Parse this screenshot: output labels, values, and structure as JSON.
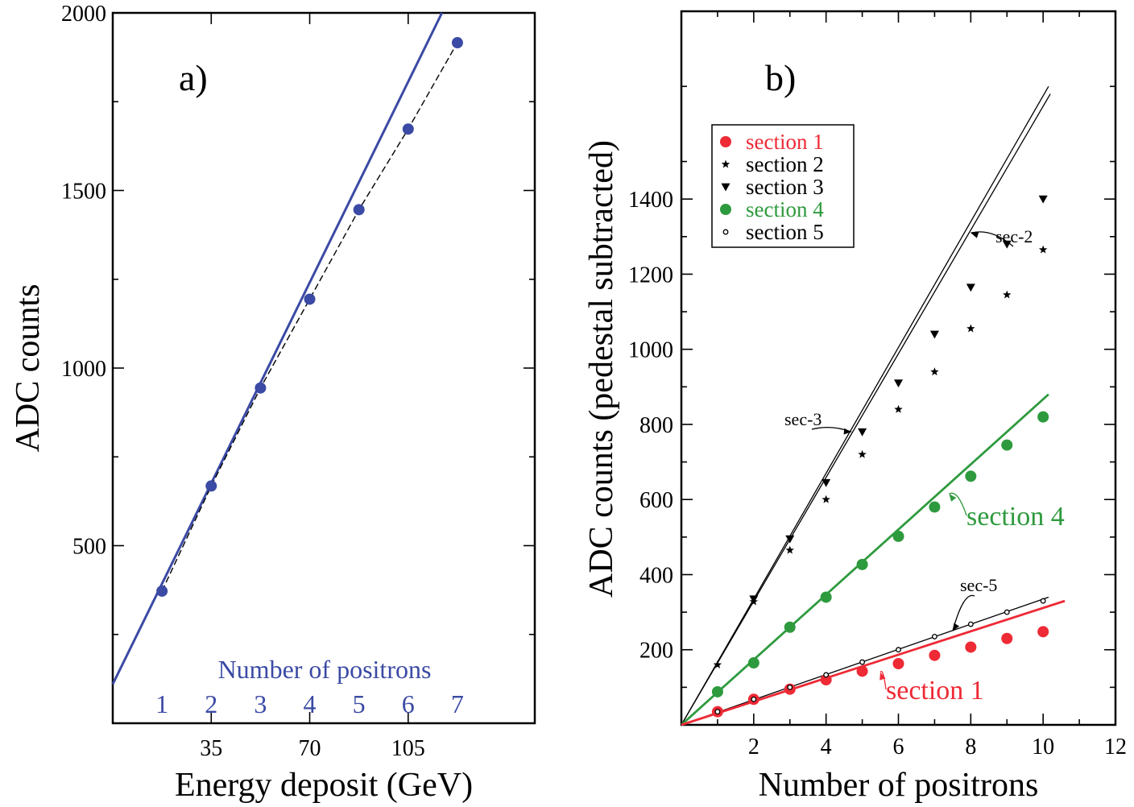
{
  "chart_data": [
    {
      "id": "a",
      "type": "line",
      "panel_label": "a)",
      "title": "",
      "xlabel": "Energy deposit (GeV)",
      "ylabel": "ADC counts",
      "xlim": [
        0,
        150
      ],
      "ylim": [
        0,
        2000
      ],
      "x_ticks": [
        35,
        70,
        105
      ],
      "x_tick_labels": [
        "35",
        "70",
        "105"
      ],
      "y_ticks": [
        500,
        1000,
        1500,
        2000
      ],
      "y_tick_labels": [
        "500",
        "1000",
        "1500",
        "2000"
      ],
      "y_minor_ticks": [
        250,
        750,
        1250,
        1750
      ],
      "colors": {
        "data": "#3b4aa4",
        "fit": "#3b4aa4",
        "dashed": "#000000"
      },
      "series": [
        {
          "kind": "points_dashed",
          "x": [
            17.5,
            35,
            52.5,
            70,
            87.5,
            105,
            122.5
          ],
          "y": [
            372,
            668,
            944,
            1194,
            1446,
            1673,
            1916
          ]
        }
      ],
      "fit_line": {
        "x": [
          0,
          117
        ],
        "y": [
          110,
          2000
        ]
      },
      "positron_axis": {
        "title": "Number of positrons",
        "labels": [
          "1",
          "2",
          "3",
          "4",
          "5",
          "6",
          "7"
        ],
        "x": [
          17.5,
          35,
          52.5,
          70,
          87.5,
          105,
          122.5
        ]
      }
    },
    {
      "id": "b",
      "type": "scatter",
      "panel_label": "b)",
      "title": "",
      "xlabel": "Number of positrons",
      "ylabel": "ADC counts (pedestal subtracted)",
      "xlim": [
        0,
        12
      ],
      "ylim": [
        0,
        1900
      ],
      "x_ticks": [
        2,
        4,
        6,
        8,
        10,
        12
      ],
      "x_tick_labels": [
        "2",
        "4",
        "6",
        "8",
        "10",
        "12"
      ],
      "y_ticks": [
        200,
        400,
        600,
        800,
        1000,
        1200,
        1400
      ],
      "y_tick_labels": [
        "200",
        "400",
        "600",
        "800",
        "1000",
        "1200",
        "1400"
      ],
      "series": [
        {
          "name": "section 1",
          "color": "#ee2a35",
          "marker": "dot",
          "x": [
            1,
            2,
            3,
            4,
            5,
            6,
            7,
            8,
            9,
            10
          ],
          "y": [
            35,
            68,
            95,
            120,
            143,
            163,
            185,
            207,
            230,
            248
          ]
        },
        {
          "name": "section 2",
          "color": "#000000",
          "marker": "star",
          "x": [
            1,
            2,
            3,
            4,
            5,
            6,
            7,
            8,
            9,
            10
          ],
          "y": [
            160,
            328,
            465,
            600,
            720,
            840,
            940,
            1055,
            1145,
            1265
          ]
        },
        {
          "name": "section 3",
          "color": "#000000",
          "marker": "triangle-down",
          "x": [
            2,
            3,
            4,
            5,
            6,
            7,
            8,
            9,
            10
          ],
          "y": [
            335,
            495,
            645,
            780,
            910,
            1040,
            1165,
            1280,
            1400
          ]
        },
        {
          "name": "section 4",
          "color": "#2e9a3e",
          "marker": "dot",
          "x": [
            1,
            2,
            3,
            4,
            5,
            6,
            7,
            8,
            9,
            10
          ],
          "y": [
            88,
            165,
            260,
            340,
            427,
            502,
            580,
            662,
            745,
            820
          ]
        },
        {
          "name": "section 5",
          "color": "#000000",
          "marker": "open-circle",
          "x": [
            1,
            2,
            3,
            4,
            5,
            6,
            7,
            8,
            9,
            10
          ],
          "y": [
            35,
            68,
            100,
            133,
            167,
            200,
            235,
            268,
            300,
            330
          ]
        }
      ],
      "fit_lines": [
        {
          "label": "sec-3",
          "color": "#000000",
          "x": [
            0,
            10.15
          ],
          "y": [
            0,
            1700
          ]
        },
        {
          "label": "sec-2",
          "color": "#000000",
          "x": [
            0,
            10.2
          ],
          "y": [
            0,
            1680
          ]
        },
        {
          "label": "section 4",
          "color": "#2e9a3e",
          "x": [
            0,
            10.15
          ],
          "y": [
            0,
            880
          ]
        },
        {
          "label": "sec-5",
          "color": "#000000",
          "x": [
            0,
            10.15
          ],
          "y": [
            0,
            340
          ]
        },
        {
          "label": "section 1",
          "color": "#ee2a35",
          "x": [
            0,
            10.6
          ],
          "y": [
            0,
            330
          ]
        }
      ],
      "legend": {
        "placement": "top-left",
        "entries": [
          {
            "label": "section 1",
            "color": "#ee2a35",
            "marker": "dot"
          },
          {
            "label": "section 2",
            "color": "#000000",
            "marker": "star"
          },
          {
            "label": "section 3",
            "color": "#000000",
            "marker": "triangle-down"
          },
          {
            "label": "section 4",
            "color": "#2e9a3e",
            "marker": "dot"
          },
          {
            "label": "section 5",
            "color": "#000000",
            "marker": "open-circle"
          }
        ]
      },
      "annotations": [
        {
          "text": "sec-3",
          "style": "small",
          "color": "#000000",
          "x": 4.7,
          "y": 780
        },
        {
          "text": "sec-2",
          "style": "small",
          "color": "#000000",
          "x": 8.0,
          "y": 1310
        },
        {
          "text": "section 4",
          "style": "big",
          "color": "#2e9a3e",
          "x": 7.4,
          "y": 615
        },
        {
          "text": "sec-5",
          "style": "small",
          "color": "#000000",
          "x": 7.5,
          "y": 250
        },
        {
          "text": "section 1",
          "style": "big",
          "color": "#ee2a35",
          "x": 5.5,
          "y": 140
        }
      ]
    }
  ]
}
